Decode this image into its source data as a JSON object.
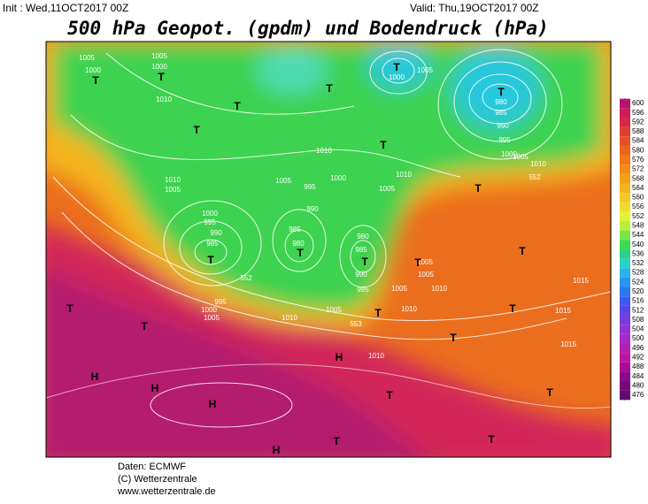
{
  "header": {
    "init": "Init : Wed,11OCT2017 00Z",
    "valid": "Valid: Thu,19OCT2017 00Z",
    "title": "500 hPa Geopot. (gpdm) und Bodendruck (hPa)"
  },
  "colorbar": {
    "labels": [
      600,
      596,
      592,
      588,
      584,
      580,
      576,
      572,
      568,
      564,
      560,
      556,
      552,
      548,
      544,
      540,
      536,
      532,
      528,
      524,
      520,
      516,
      512,
      508,
      504,
      500,
      496,
      492,
      488,
      484,
      480,
      476
    ],
    "colors": [
      "#b4146e",
      "#c81e5a",
      "#d72846",
      "#e13c32",
      "#e65028",
      "#eb641e",
      "#f07814",
      "#f58c14",
      "#f5a014",
      "#f5b41e",
      "#f5c828",
      "#f0dc28",
      "#e6f032",
      "#b4f03c",
      "#78e646",
      "#3cdc50",
      "#28d28c",
      "#28d2c8",
      "#28b4e6",
      "#2896f0",
      "#2878f0",
      "#3c5af0",
      "#5a46e6",
      "#783cdc",
      "#9632d2",
      "#a828c8",
      "#b41eb4",
      "#be14a0",
      "#aa0a96",
      "#8c0a8c",
      "#780a7a",
      "#640a6e"
    ]
  },
  "map_labels": [
    "1005",
    "1000",
    "T",
    "1005",
    "1000",
    "T",
    "1010",
    "T",
    "T",
    "T",
    "T",
    "1000",
    "1005",
    "T",
    "980",
    "985",
    "990",
    "995",
    "1000",
    "1005",
    "1010",
    "552",
    "T",
    "1010",
    "1005",
    "1000",
    "995",
    "990",
    "T",
    "1005",
    "1010",
    "1010",
    "1005",
    "1000",
    "995",
    "990",
    "985",
    "T",
    "985",
    "980",
    "T",
    "980",
    "985",
    "T",
    "990",
    "995",
    "552",
    "995",
    "1000",
    "1005",
    "1010",
    "1005",
    "T",
    "553",
    "1005",
    "1010",
    "1005",
    "1005",
    "1010",
    "T",
    "1015",
    "1015",
    "1015",
    "1010",
    "T",
    "T",
    "H",
    "T",
    "T",
    "T",
    "T",
    "T",
    "H",
    "H",
    "H",
    "T",
    "T",
    "H"
  ],
  "footer": {
    "source": "Daten: ECMWF",
    "copyright": "(C) Wetterzentrale",
    "url": "www.wetterzentrale.de"
  }
}
